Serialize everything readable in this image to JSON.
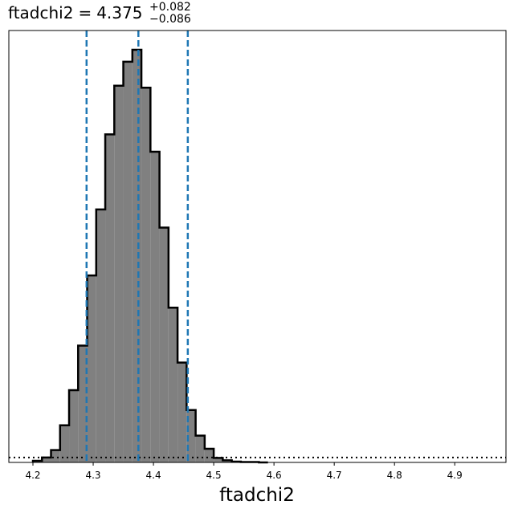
{
  "chart_data": {
    "type": "bar",
    "title": {
      "parameter": "ftadchi2",
      "equals": "=",
      "value": "4.375",
      "upper": "+0.082",
      "lower": "−0.086"
    },
    "xlabel": "ftadchi2",
    "ylabel": "",
    "xlim": [
      4.16,
      4.985
    ],
    "ylim": [
      0,
      1.0
    ],
    "xticks": [
      "4.2",
      "4.3",
      "4.4",
      "4.5",
      "4.6",
      "4.7",
      "4.8",
      "4.9"
    ],
    "yticks_shown": false,
    "grid": false,
    "histogram": {
      "bin_edges": [
        4.2,
        4.215,
        4.23,
        4.245,
        4.26,
        4.275,
        4.29,
        4.305,
        4.32,
        4.335,
        4.35,
        4.365,
        4.38,
        4.395,
        4.41,
        4.425,
        4.44,
        4.455,
        4.47,
        4.485,
        4.5,
        4.515,
        4.53,
        4.545,
        4.56,
        4.575,
        4.59
      ],
      "counts": [
        0.004,
        0.012,
        0.03,
        0.09,
        0.175,
        0.283,
        0.453,
        0.613,
        0.795,
        0.913,
        0.971,
        1.0,
        0.908,
        0.753,
        0.569,
        0.375,
        0.242,
        0.127,
        0.065,
        0.033,
        0.011,
        0.005,
        0.002,
        0.001,
        0.001,
        0.0
      ],
      "fill": "#808080",
      "edge": "#000000"
    },
    "vlines": [
      {
        "role": "lower-quantile",
        "x": 4.289,
        "style": "dashed",
        "color": "#1f77b4"
      },
      {
        "role": "median",
        "x": 4.375,
        "style": "dashed",
        "color": "#1f77b4"
      },
      {
        "role": "upper-quantile",
        "x": 4.457,
        "style": "dashed",
        "color": "#1f77b4"
      }
    ],
    "hline": {
      "y": 0.012,
      "style": "dotted",
      "color": "#000000"
    }
  }
}
